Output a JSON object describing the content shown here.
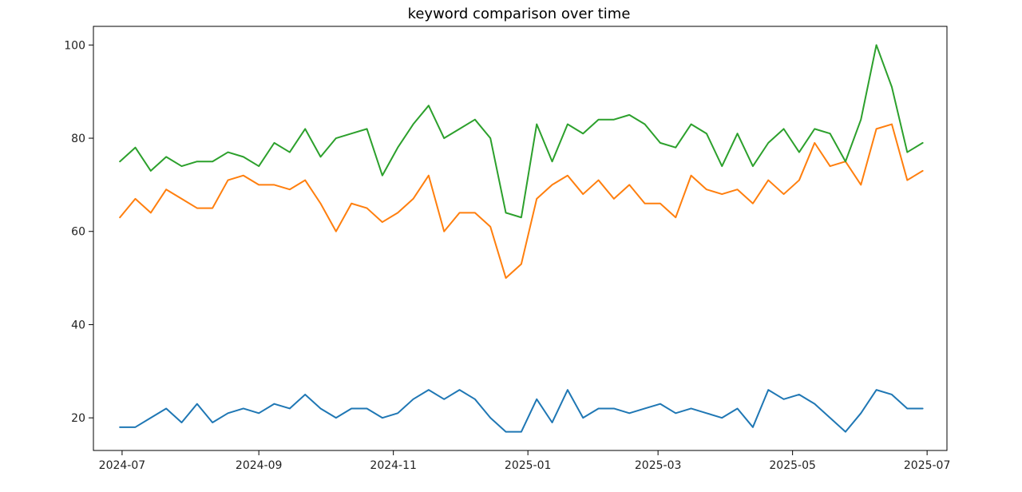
{
  "chart_data": {
    "type": "line",
    "title": "keyword comparison over time",
    "xlabel": "",
    "ylabel": "",
    "x_type": "date",
    "xlim": [
      "2024-06-18",
      "2025-07-10"
    ],
    "ylim": [
      13,
      104
    ],
    "grid": false,
    "x_ticks": [
      "2024-07",
      "2024-09",
      "2024-11",
      "2025-01",
      "2025-03",
      "2025-05",
      "2025-07"
    ],
    "y_ticks": [
      20,
      40,
      60,
      80,
      100
    ],
    "x": [
      "2024-06-30",
      "2024-07-07",
      "2024-07-14",
      "2024-07-21",
      "2024-07-28",
      "2024-08-04",
      "2024-08-11",
      "2024-08-18",
      "2024-08-25",
      "2024-09-01",
      "2024-09-08",
      "2024-09-15",
      "2024-09-22",
      "2024-09-29",
      "2024-10-06",
      "2024-10-13",
      "2024-10-20",
      "2024-10-27",
      "2024-11-03",
      "2024-11-10",
      "2024-11-17",
      "2024-11-24",
      "2024-12-01",
      "2024-12-08",
      "2024-12-15",
      "2024-12-22",
      "2024-12-29",
      "2025-01-05",
      "2025-01-12",
      "2025-01-19",
      "2025-01-26",
      "2025-02-02",
      "2025-02-09",
      "2025-02-16",
      "2025-02-23",
      "2025-03-02",
      "2025-03-09",
      "2025-03-16",
      "2025-03-23",
      "2025-03-30",
      "2025-04-06",
      "2025-04-13",
      "2025-04-20",
      "2025-04-27",
      "2025-05-04",
      "2025-05-11",
      "2025-05-18",
      "2025-05-25",
      "2025-06-01",
      "2025-06-08",
      "2025-06-15",
      "2025-06-22",
      "2025-06-29"
    ],
    "series": [
      {
        "color": "#1f77b4",
        "values": [
          18,
          18,
          20,
          22,
          19,
          23,
          19,
          21,
          22,
          21,
          23,
          22,
          25,
          22,
          20,
          22,
          22,
          20,
          21,
          24,
          26,
          24,
          26,
          24,
          20,
          17,
          17,
          24,
          19,
          26,
          20,
          22,
          22,
          21,
          22,
          23,
          21,
          22,
          21,
          20,
          22,
          18,
          26,
          24,
          25,
          23,
          20,
          17,
          21,
          26,
          25,
          22,
          22
        ]
      },
      {
        "color": "#ff7f0e",
        "values": [
          63,
          67,
          64,
          69,
          67,
          65,
          65,
          71,
          72,
          70,
          70,
          69,
          71,
          66,
          60,
          66,
          65,
          62,
          64,
          67,
          72,
          60,
          64,
          64,
          61,
          50,
          53,
          67,
          70,
          72,
          68,
          71,
          67,
          70,
          66,
          66,
          63,
          72,
          69,
          68,
          69,
          66,
          71,
          68,
          71,
          79,
          74,
          75,
          70,
          82,
          83,
          71,
          73
        ]
      },
      {
        "color": "#2ca02c",
        "values": [
          75,
          78,
          73,
          76,
          74,
          75,
          75,
          77,
          76,
          74,
          79,
          77,
          82,
          76,
          80,
          81,
          82,
          72,
          78,
          83,
          87,
          80,
          82,
          84,
          80,
          64,
          63,
          83,
          75,
          83,
          81,
          84,
          84,
          85,
          83,
          79,
          78,
          83,
          81,
          74,
          81,
          74,
          79,
          82,
          77,
          82,
          81,
          75,
          84,
          100,
          91,
          77,
          79
        ]
      }
    ]
  }
}
